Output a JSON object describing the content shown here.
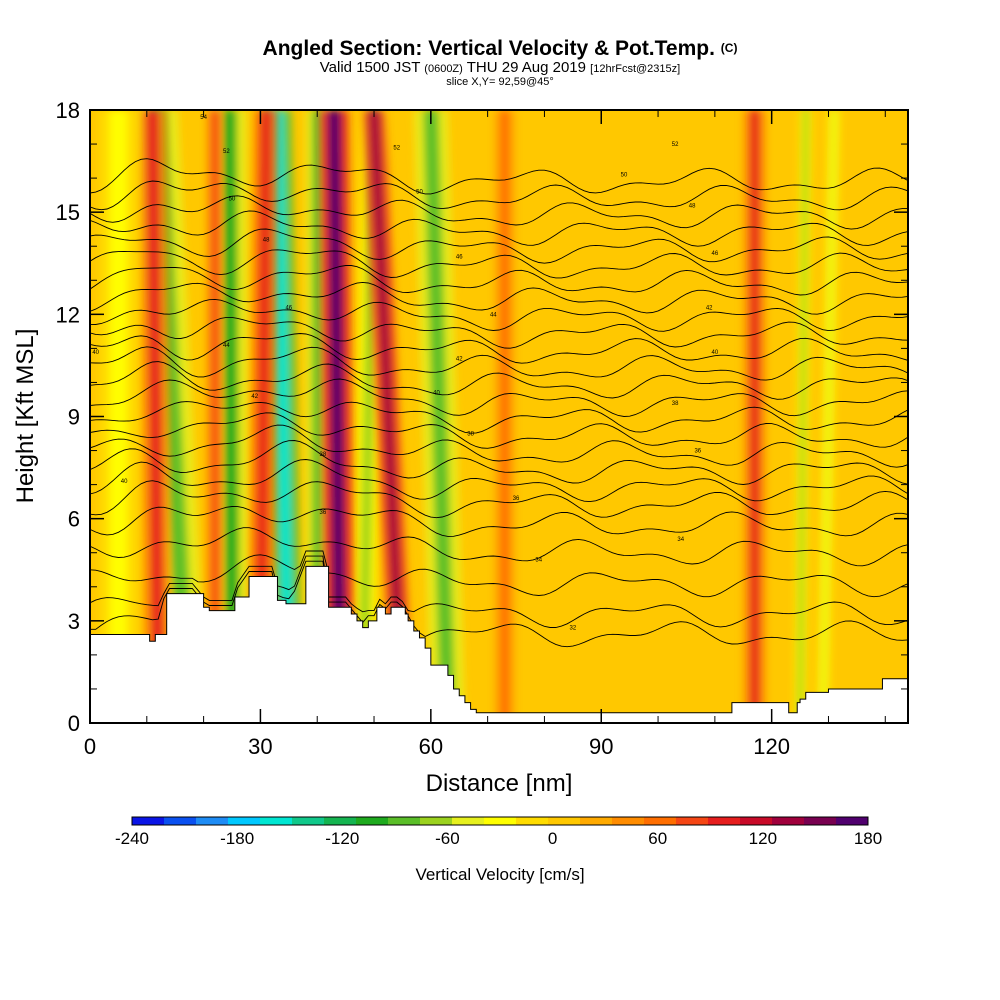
{
  "header": {
    "title": "Angled Section: Vertical Velocity & Pot.Temp.",
    "title_tag": "(C)",
    "valid_prefix": "Valid 1500 JST",
    "valid_utc": "(0600Z)",
    "valid_date": "THU 29 Aug 2019",
    "forecast": "[12hrFcst@2315z]",
    "slice": "slice X,Y= 92,59@45°"
  },
  "chart_data": {
    "type": "heatmap",
    "xlabel": "Distance [nm]",
    "ylabel": "Height [Kft MSL]",
    "xlim": [
      0,
      144
    ],
    "ylim": [
      0,
      18
    ],
    "x_ticks": [
      "0",
      "30",
      "60",
      "90",
      "120"
    ],
    "y_ticks": [
      "0",
      "3",
      "6",
      "9",
      "12",
      "15",
      "18"
    ],
    "colorbar": {
      "title": "Vertical Velocity [cm/s]",
      "range": [
        -240,
        180
      ],
      "tick_labels": [
        "-240",
        "-180",
        "-120",
        "-60",
        "0",
        "60",
        "120",
        "180"
      ],
      "colors": [
        "#0a14e6",
        "#0a50f0",
        "#1e8cf5",
        "#00c8ff",
        "#00e6d2",
        "#10c88a",
        "#14b450",
        "#1eaa1e",
        "#5abe28",
        "#9bd21e",
        "#e6f01e",
        "#ffff00",
        "#ffdc00",
        "#ffc800",
        "#ffaa00",
        "#ff8c00",
        "#ff6e00",
        "#f54614",
        "#e61e1e",
        "#c80a28",
        "#a0003c",
        "#780050",
        "#50006e"
      ]
    },
    "background_color": "#ffc800",
    "terrain_color": "#ffffff",
    "terrain_profile": {
      "x": [
        0,
        9.5,
        10.5,
        11.5,
        13.5,
        18,
        20,
        21,
        25,
        25.5,
        28,
        32,
        33,
        34.5,
        35.5,
        38,
        41,
        42,
        45,
        46,
        47,
        48,
        49,
        50,
        50.5,
        52,
        53,
        54,
        55.5,
        56,
        57,
        58,
        59,
        60,
        61,
        62,
        63,
        64,
        65,
        66,
        67,
        68,
        112,
        113,
        114,
        116,
        121,
        123,
        123.5,
        124.5,
        125,
        126,
        130,
        134,
        138,
        139.5,
        144
      ],
      "y": [
        2.6,
        2.6,
        2.4,
        2.6,
        3.8,
        3.8,
        3.4,
        3.3,
        3.3,
        3.7,
        4.3,
        4.3,
        3.6,
        3.5,
        3.5,
        4.6,
        4.6,
        3.4,
        3.4,
        3.2,
        3.0,
        2.8,
        3.0,
        3.0,
        3.4,
        3.2,
        3.4,
        3.4,
        3.2,
        3.0,
        2.7,
        2.5,
        2.2,
        1.7,
        1.7,
        1.7,
        1.4,
        1.0,
        0.8,
        0.6,
        0.4,
        0.3,
        0.3,
        0.6,
        0.6,
        0.6,
        0.6,
        0.3,
        0.3,
        0.6,
        0.7,
        0.9,
        1.0,
        1.0,
        1.0,
        1.3,
        1.3
      ]
    },
    "velocity_bands": [
      {
        "x0": 17,
        "x1": 12,
        "value": -90,
        "width": 3.5
      },
      {
        "x0": 25,
        "x1": 24.5,
        "value": -100,
        "width": 3.0
      },
      {
        "x0": 35,
        "x1": 33,
        "value": -160,
        "width": 2.5
      },
      {
        "x0": 40,
        "x1": 40,
        "value": -80,
        "width": 2.0
      },
      {
        "x0": 48,
        "x1": 50,
        "value": -60,
        "width": 2.0
      },
      {
        "x0": 63,
        "x1": 60,
        "value": -80,
        "width": 3.0
      },
      {
        "x0": 12,
        "x1": 11,
        "value": 90,
        "width": 2.5
      },
      {
        "x0": 22,
        "x1": 22,
        "value": 80,
        "width": 1.5
      },
      {
        "x0": 30,
        "x1": 31,
        "value": 100,
        "width": 2.0
      },
      {
        "x0": 44,
        "x1": 43,
        "value": 170,
        "width": 2.5
      },
      {
        "x0": 55,
        "x1": 50,
        "value": 130,
        "width": 2.0
      },
      {
        "x0": 73,
        "x1": 73,
        "value": 60,
        "width": 2.0
      },
      {
        "x0": 117,
        "x1": 117,
        "value": 90,
        "width": 2.0
      },
      {
        "x0": 125,
        "x1": 126,
        "value": -60,
        "width": 1.0
      },
      {
        "x0": 129,
        "x1": 131,
        "value": -40,
        "width": 1.0
      },
      {
        "x0": 5,
        "x1": 5,
        "value": -30,
        "width": 3.5
      }
    ],
    "theta_contours": {
      "levels": [
        1,
        2,
        3,
        4,
        5,
        6,
        7,
        8,
        9,
        10,
        11,
        12,
        13,
        14,
        15,
        16,
        17,
        18,
        19,
        20,
        21,
        22,
        23,
        24,
        25
      ],
      "base_height": [
        2.6,
        3.2,
        4.1,
        5.0,
        5.8,
        6.4,
        6.9,
        7.4,
        7.9,
        8.4,
        8.9,
        9.4,
        9.9,
        10.4,
        10.9,
        11.4,
        11.9,
        12.4,
        12.9,
        13.4,
        13.9,
        14.4,
        14.9,
        15.4,
        15.9
      ],
      "label_points": [
        {
          "text": "32",
          "x": 85,
          "y": 2.8
        },
        {
          "text": "34",
          "x": 79,
          "y": 4.8
        },
        {
          "text": "34",
          "x": 104,
          "y": 5.4
        },
        {
          "text": "36",
          "x": 75,
          "y": 6.6
        },
        {
          "text": "36",
          "x": 107,
          "y": 8.0
        },
        {
          "text": "38",
          "x": 67,
          "y": 8.5
        },
        {
          "text": "38",
          "x": 103,
          "y": 9.4
        },
        {
          "text": "40",
          "x": 61,
          "y": 9.7
        },
        {
          "text": "40",
          "x": 110,
          "y": 10.9
        },
        {
          "text": "42",
          "x": 65,
          "y": 10.7
        },
        {
          "text": "42",
          "x": 109,
          "y": 12.2
        },
        {
          "text": "44",
          "x": 71,
          "y": 12.0
        },
        {
          "text": "46",
          "x": 65,
          "y": 13.7
        },
        {
          "text": "46",
          "x": 110,
          "y": 13.8
        },
        {
          "text": "48",
          "x": 106,
          "y": 15.2
        },
        {
          "text": "50",
          "x": 94,
          "y": 16.1
        },
        {
          "text": "50",
          "x": 58,
          "y": 15.6
        },
        {
          "text": "52",
          "x": 103,
          "y": 17.0
        },
        {
          "text": "52",
          "x": 54,
          "y": 16.9
        },
        {
          "text": "40",
          "x": 1,
          "y": 10.9
        },
        {
          "text": "40",
          "x": 6,
          "y": 7.1
        },
        {
          "text": "42",
          "x": 29,
          "y": 9.6
        },
        {
          "text": "44",
          "x": 24,
          "y": 11.1
        },
        {
          "text": "38",
          "x": 41,
          "y": 7.9
        },
        {
          "text": "36",
          "x": 41,
          "y": 6.2
        },
        {
          "text": "46",
          "x": 35,
          "y": 12.2
        },
        {
          "text": "48",
          "x": 31,
          "y": 14.2
        },
        {
          "text": "50",
          "x": 25,
          "y": 15.4
        },
        {
          "text": "52",
          "x": 24,
          "y": 16.8
        },
        {
          "text": "54",
          "x": 20,
          "y": 17.8
        }
      ]
    }
  }
}
